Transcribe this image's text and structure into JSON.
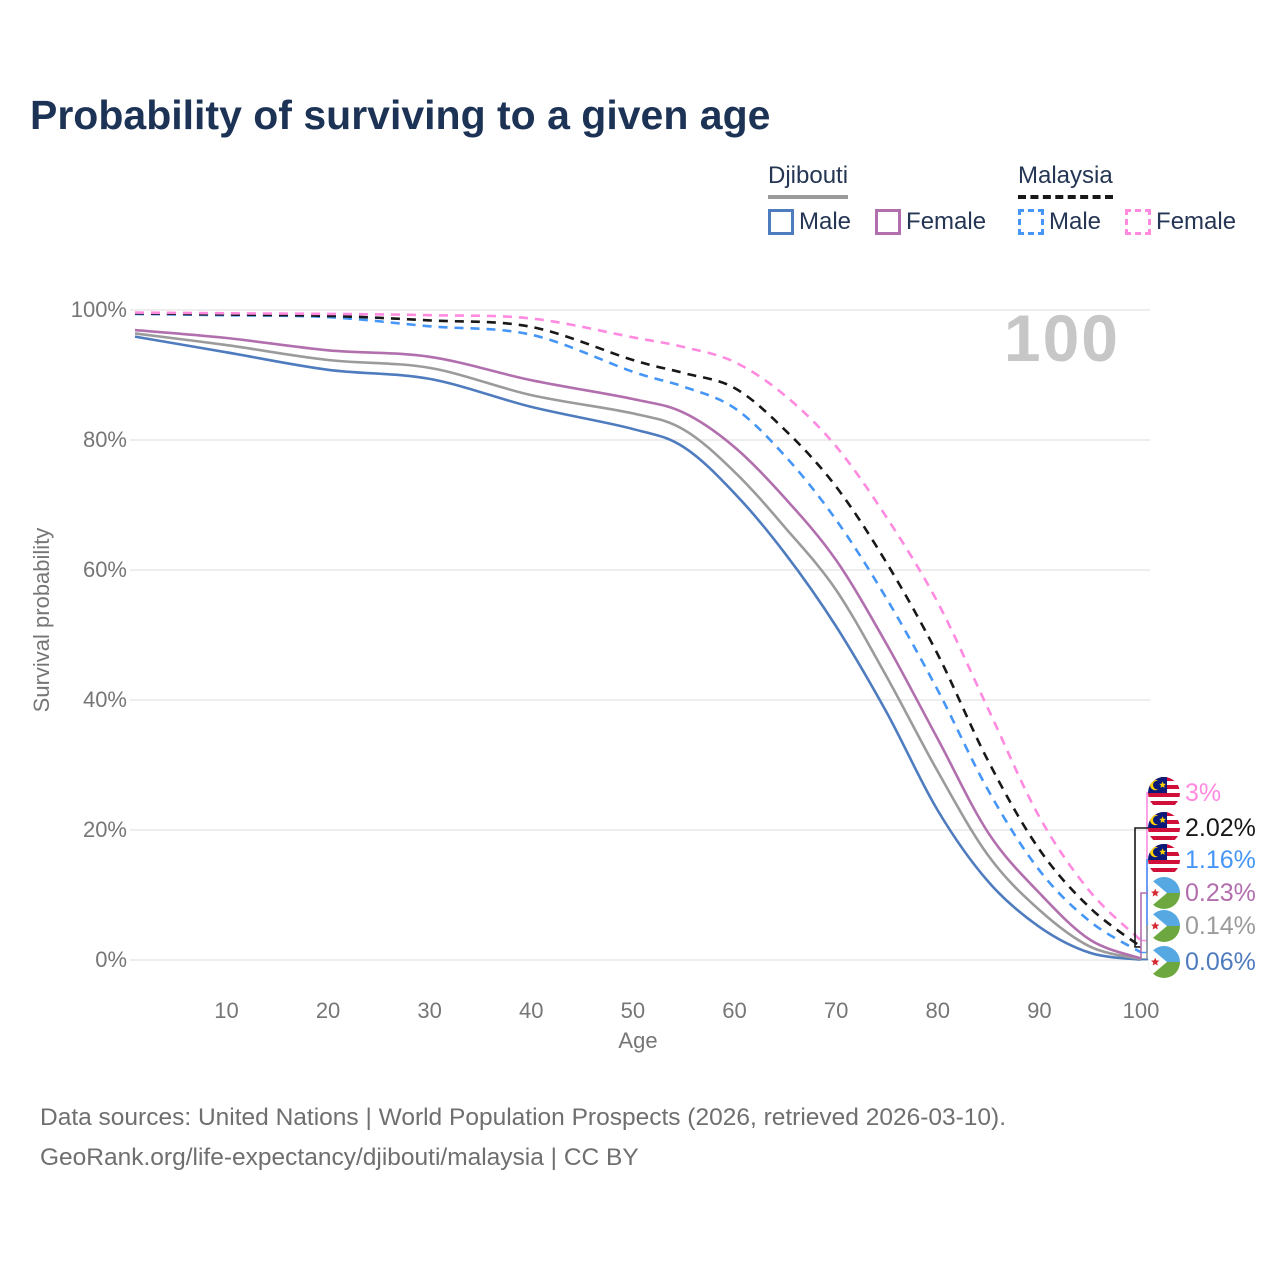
{
  "title": "Probability of surviving to a given age",
  "watermark": "100",
  "legend": {
    "groups": [
      {
        "label": "Djibouti",
        "line_style": "solid",
        "underline_color": "#9b9b9b",
        "items": [
          {
            "label": "Male",
            "color": "#4f7cbe",
            "dashed": false
          },
          {
            "label": "Female",
            "color": "#b26fae",
            "dashed": false
          }
        ]
      },
      {
        "label": "Malaysia",
        "line_style": "dashed",
        "underline_color": "#181818",
        "items": [
          {
            "label": "Male",
            "color": "#4596f7",
            "dashed": true
          },
          {
            "label": "Female",
            "color": "#ff8ae0",
            "dashed": true
          }
        ]
      }
    ]
  },
  "chart_data": {
    "type": "line",
    "title": "Probability of surviving to a given age",
    "xlabel": "Age",
    "ylabel": "Survival probability",
    "xlim": [
      1,
      100
    ],
    "ylim": [
      0,
      100
    ],
    "x_ticks": [
      10,
      20,
      30,
      40,
      50,
      60,
      70,
      80,
      90,
      100
    ],
    "y_ticks": [
      0,
      20,
      40,
      60,
      80,
      100
    ],
    "y_tick_labels": [
      "0%",
      "20%",
      "40%",
      "60%",
      "80%",
      "100%"
    ],
    "grid": "horizontal-only",
    "legend_position": "top-right",
    "x": [
      1,
      10,
      20,
      30,
      40,
      50,
      55,
      60,
      65,
      70,
      75,
      80,
      85,
      90,
      95,
      100
    ],
    "series": [
      {
        "name": "Malaysia Female",
        "country": "Malaysia",
        "sex": "Female",
        "color": "#ff8ae0",
        "dashed": true,
        "flag": "malaysia",
        "end_label": "3%",
        "values": [
          99.6,
          99.5,
          99.4,
          99.2,
          98.7,
          95.8,
          94.3,
          92.0,
          86.8,
          79.0,
          68.0,
          55.0,
          38.5,
          22.0,
          10.5,
          3.0
        ]
      },
      {
        "name": "Malaysia Both sexes",
        "country": "Malaysia",
        "sex": "Both",
        "color": "#181818",
        "dashed": true,
        "flag": "malaysia",
        "end_label": "2.02%",
        "values": [
          99.5,
          99.3,
          99.1,
          98.4,
          97.4,
          92.3,
          90.3,
          88.0,
          81.5,
          72.8,
          61.0,
          47.0,
          30.5,
          17.0,
          8.0,
          2.02
        ]
      },
      {
        "name": "Malaysia Male",
        "country": "Malaysia",
        "sex": "Male",
        "color": "#4596f7",
        "dashed": true,
        "flag": "malaysia",
        "end_label": "1.16%",
        "values": [
          99.4,
          99.2,
          98.9,
          97.5,
          96.2,
          90.5,
          88.2,
          84.9,
          77.5,
          67.7,
          55.5,
          41.5,
          26.0,
          13.8,
          5.9,
          1.16
        ]
      },
      {
        "name": "Djibouti Female",
        "country": "Djibouti",
        "sex": "Female",
        "color": "#b26fae",
        "dashed": false,
        "flag": "djibouti",
        "end_label": "0.23%",
        "values": [
          96.9,
          95.7,
          93.8,
          92.8,
          89.2,
          86.3,
          84.2,
          78.9,
          71.0,
          61.5,
          48.5,
          34.0,
          19.5,
          10.3,
          3.1,
          0.23
        ]
      },
      {
        "name": "Djibouti Both sexes",
        "country": "Djibouti",
        "sex": "Both",
        "color": "#9b9b9b",
        "dashed": false,
        "flag": "djibouti",
        "end_label": "0.14%",
        "values": [
          96.4,
          94.6,
          92.3,
          91.1,
          86.9,
          84.1,
          81.6,
          75.1,
          66.5,
          56.9,
          43.5,
          29.0,
          16.0,
          7.7,
          2.05,
          0.14
        ]
      },
      {
        "name": "Djibouti Male",
        "country": "Djibouti",
        "sex": "Male",
        "color": "#4f7cbe",
        "dashed": false,
        "flag": "djibouti",
        "end_label": "0.06%",
        "values": [
          95.9,
          93.5,
          90.8,
          89.4,
          85.1,
          81.7,
          78.9,
          71.8,
          62.5,
          51.3,
          38.0,
          23.0,
          12.0,
          5.1,
          1.1,
          0.06
        ]
      }
    ]
  },
  "footer": {
    "line1": "Data sources: United Nations | World Population Prospects (2026, retrieved 2026-03-10).",
    "line2": "GeoRank.org/life-expectancy/djibouti/malaysia | CC BY"
  }
}
